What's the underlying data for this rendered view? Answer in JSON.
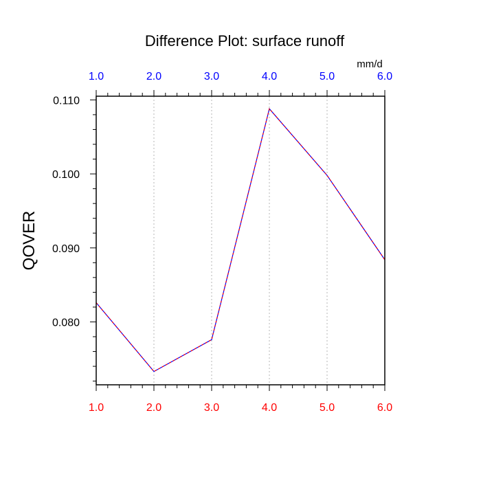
{
  "chart_data": {
    "type": "line",
    "title": "Difference Plot: surface runoff",
    "units": "mm/d",
    "ylabel": "QOVER",
    "xlabel": "",
    "x": [
      1.0,
      2.0,
      3.0,
      4.0,
      5.0,
      6.0
    ],
    "x_tick_labels": [
      "1.0",
      "2.0",
      "3.0",
      "4.0",
      "5.0",
      "6.0"
    ],
    "y_tick_values": [
      0.08,
      0.09,
      0.1,
      0.11
    ],
    "y_tick_labels": [
      "0.080",
      "0.090",
      "0.100",
      "0.110"
    ],
    "xlim": [
      1.0,
      6.0
    ],
    "ylim": [
      0.0715,
      0.1105
    ],
    "grid": "vertical dotted at x ticks",
    "series": [
      {
        "values": [
          0.0826,
          0.0733,
          0.0776,
          0.1088,
          0.0998,
          0.0884
        ],
        "style": "dashed",
        "colors": [
          "#0000ff",
          "#ff0000"
        ]
      }
    ],
    "top_axis_color": "#0000ff",
    "bottom_axis_color": "#ff0000"
  }
}
